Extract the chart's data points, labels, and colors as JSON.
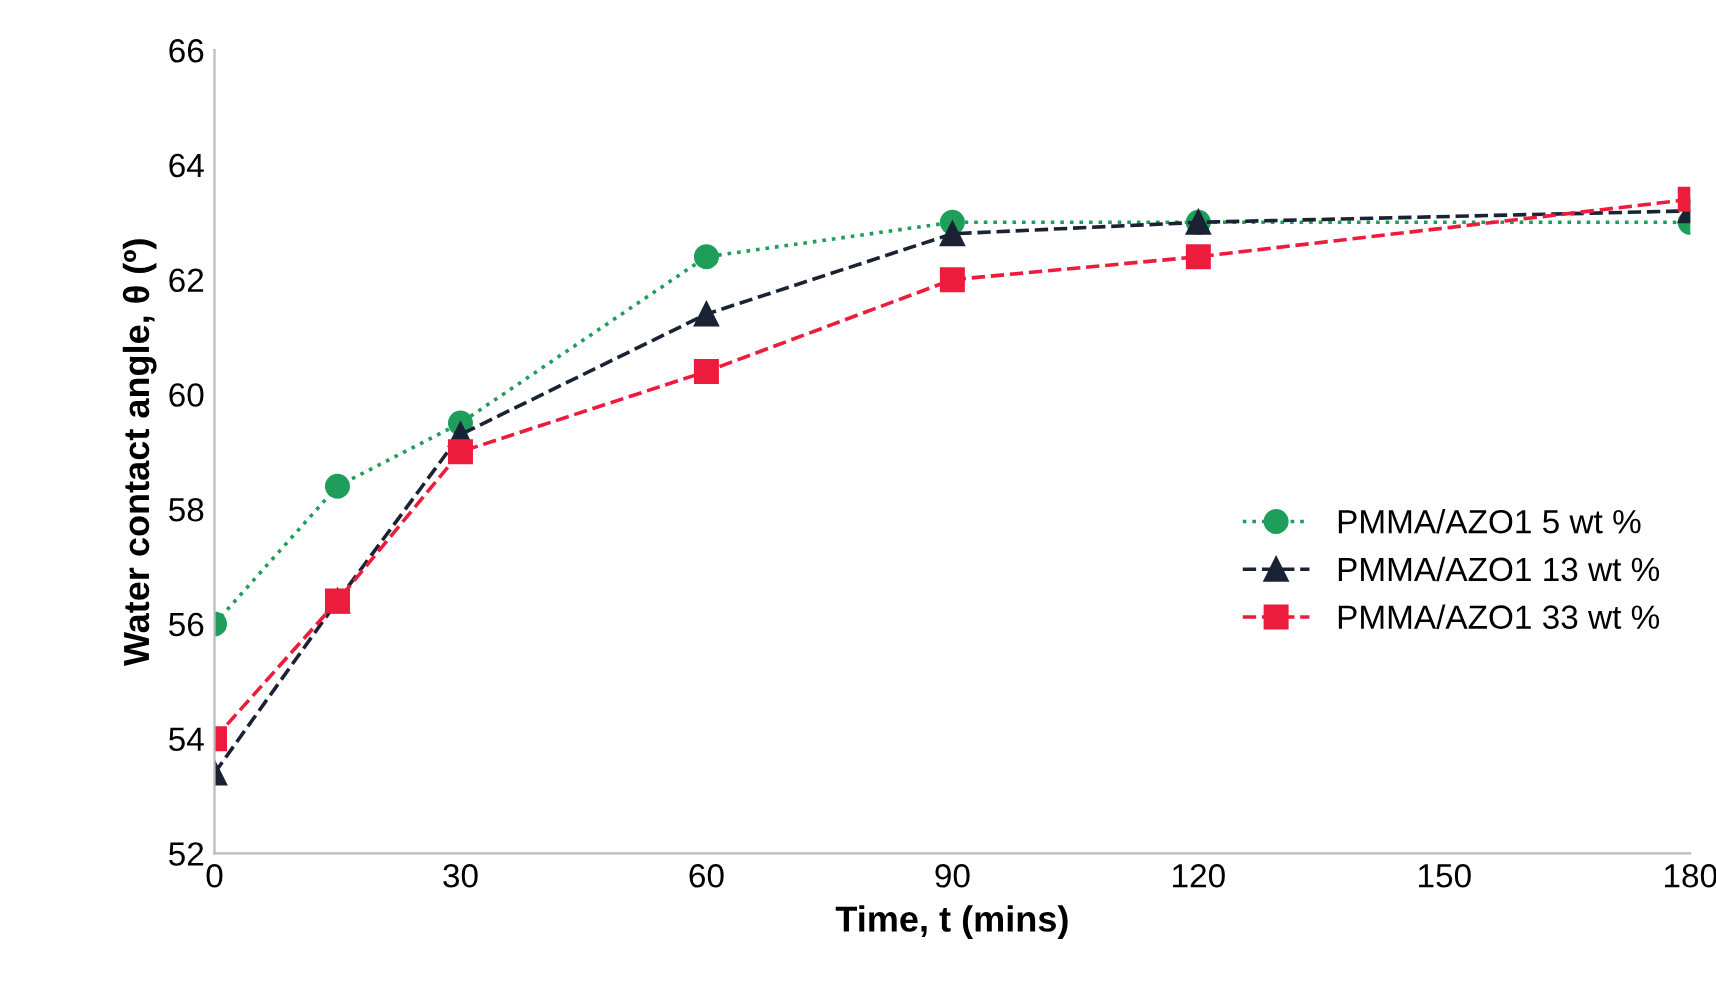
{
  "chart_data": {
    "type": "line",
    "xlabel": "Time, t (mins)",
    "ylabel": "Water contact angle, θ (º)",
    "x": [
      0,
      15,
      30,
      60,
      90,
      120,
      180
    ],
    "series": [
      {
        "name": "PMMA/AZO1 5 wt %",
        "color": "#1e9e5a",
        "marker": "circle",
        "line_style": "dotted",
        "values": [
          56.0,
          58.4,
          59.5,
          62.4,
          63.0,
          63.0,
          63.0
        ]
      },
      {
        "name": "PMMA/AZO1 13 wt %",
        "color": "#1a2333",
        "marker": "triangle",
        "line_style": "dashed",
        "values": [
          53.4,
          56.4,
          59.3,
          61.4,
          62.8,
          63.0,
          63.2
        ]
      },
      {
        "name": "PMMA/AZO1 33 wt %",
        "color": "#ee1c3c",
        "marker": "square",
        "line_style": "dashed",
        "values": [
          54.0,
          56.4,
          59.0,
          60.4,
          62.0,
          62.4,
          63.4
        ]
      }
    ],
    "xlim": [
      0,
      180
    ],
    "xticks": [
      0,
      30,
      60,
      90,
      120,
      150,
      180
    ],
    "ylim": [
      52,
      66
    ],
    "yticks": [
      52,
      54,
      56,
      58,
      60,
      62,
      64,
      66
    ],
    "grid": false,
    "legend": "right"
  }
}
